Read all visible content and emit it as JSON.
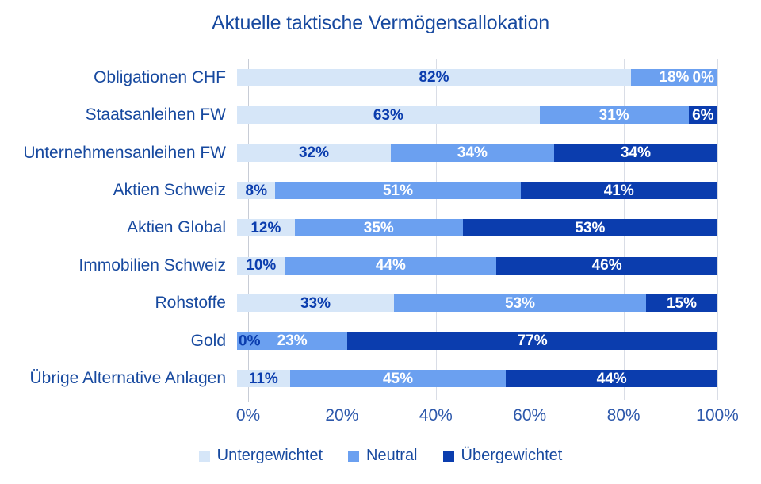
{
  "title": "Aktuelle taktische Vermögensallokation",
  "palette": {
    "text": "#17499f",
    "tick": "#2d58ab",
    "grid": "#d9dde6",
    "dark": "#0b3dae",
    "background": "#ffffff"
  },
  "chart_data": {
    "type": "bar",
    "orientation": "horizontal",
    "stacked": true,
    "title": "Aktuelle taktische Vermögensallokation",
    "categories": [
      "Obligationen CHF",
      "Staatsanleihen FW",
      "Unternehmensanleihen FW",
      "Aktien Schweiz",
      "Aktien Global",
      "Immobilien Schweiz",
      "Rohstoffe",
      "Gold",
      "Übrige Alternative Anlagen"
    ],
    "series": [
      {
        "key": "untergewichtet",
        "name": "Untergewichtet",
        "color": "#d6e6f8",
        "values": [
          82,
          63,
          32,
          8,
          12,
          10,
          33,
          0,
          11
        ]
      },
      {
        "key": "neutral",
        "name": "Neutral",
        "color": "#6ba0f0",
        "values": [
          18,
          31,
          34,
          51,
          35,
          44,
          53,
          23,
          45
        ]
      },
      {
        "key": "uebergewichtet",
        "name": "Übergewichtet",
        "color": "#0b3dae",
        "values": [
          0,
          6,
          34,
          41,
          53,
          46,
          15,
          77,
          44
        ]
      }
    ],
    "x_ticks": [
      "0%",
      "20%",
      "40%",
      "60%",
      "80%",
      "100%"
    ],
    "xlim": [
      0,
      100
    ],
    "unit": "%",
    "value_label_format": "{v}%",
    "legend_position": "bottom",
    "grid": "vertical"
  }
}
